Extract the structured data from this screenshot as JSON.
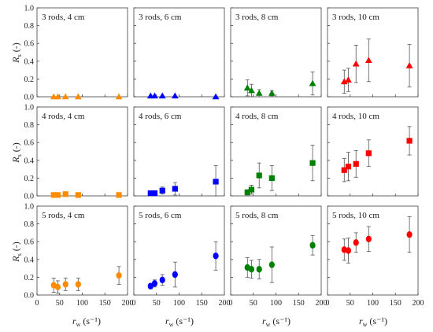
{
  "chart_data": {
    "type": "scatter",
    "grid_layout": {
      "rows": 3,
      "cols": 4
    },
    "xlabel": {
      "symbol": "r",
      "subscript": "w",
      "unit": "(s⁻¹)"
    },
    "ylabel": {
      "symbol": "R",
      "subscript": "s",
      "unit": "(-)"
    },
    "xlim": [
      0,
      200
    ],
    "ylim": [
      0,
      1.0
    ],
    "x_ticks": [
      "0",
      "50",
      "100",
      "150",
      "200"
    ],
    "y_ticks": [
      "0.0",
      "0.2",
      "0.4",
      "0.6",
      "0.8",
      "1.0"
    ],
    "grid": false,
    "row_colors": {
      "4 cm": "#ff8c00",
      "6 cm": "#0000ff",
      "8 cm": "#008000",
      "10 cm": "#ff0000"
    },
    "panels": [
      {
        "label": "3 rods, 4 cm",
        "marker": "triangle",
        "color": "#ff8c00",
        "points": [
          {
            "x": 37,
            "y": 0.0,
            "err": 0.0
          },
          {
            "x": 46,
            "y": 0.0,
            "err": 0.0
          },
          {
            "x": 63,
            "y": 0.0,
            "err": 0.0
          },
          {
            "x": 91,
            "y": 0.0,
            "err": 0.0
          },
          {
            "x": 181,
            "y": 0.0,
            "err": 0.0
          }
        ]
      },
      {
        "label": "3 rods, 6 cm",
        "marker": "triangle",
        "color": "#0000ff",
        "points": [
          {
            "x": 37,
            "y": 0.01,
            "err": 0.0
          },
          {
            "x": 46,
            "y": 0.01,
            "err": 0.0
          },
          {
            "x": 63,
            "y": 0.01,
            "err": 0.0
          },
          {
            "x": 91,
            "y": 0.01,
            "err": 0.0
          },
          {
            "x": 181,
            "y": 0.0,
            "err": 0.0
          }
        ]
      },
      {
        "label": "3 rods, 8 cm",
        "marker": "triangle",
        "color": "#008000",
        "points": [
          {
            "x": 37,
            "y": 0.1,
            "err": 0.09
          },
          {
            "x": 46,
            "y": 0.07,
            "err": 0.07
          },
          {
            "x": 63,
            "y": 0.04,
            "err": 0.04
          },
          {
            "x": 91,
            "y": 0.04,
            "err": 0.03
          },
          {
            "x": 181,
            "y": 0.15,
            "err": 0.13
          }
        ]
      },
      {
        "label": "3 rods, 10 cm",
        "marker": "triangle",
        "color": "#ff0000",
        "points": [
          {
            "x": 37,
            "y": 0.17,
            "err": 0.13
          },
          {
            "x": 46,
            "y": 0.19,
            "err": 0.13
          },
          {
            "x": 63,
            "y": 0.37,
            "err": 0.21
          },
          {
            "x": 91,
            "y": 0.41,
            "err": 0.24
          },
          {
            "x": 181,
            "y": 0.35,
            "err": 0.24
          }
        ]
      },
      {
        "label": "4 rods, 4 cm",
        "marker": "square",
        "color": "#ff8c00",
        "points": [
          {
            "x": 37,
            "y": 0.01,
            "err": 0.0
          },
          {
            "x": 46,
            "y": 0.01,
            "err": 0.0
          },
          {
            "x": 63,
            "y": 0.02,
            "err": 0.0
          },
          {
            "x": 91,
            "y": 0.01,
            "err": 0.0
          },
          {
            "x": 181,
            "y": 0.01,
            "err": 0.0
          }
        ]
      },
      {
        "label": "4 rods, 6 cm",
        "marker": "square",
        "color": "#0000ff",
        "points": [
          {
            "x": 37,
            "y": 0.03,
            "err": 0.02
          },
          {
            "x": 46,
            "y": 0.03,
            "err": 0.02
          },
          {
            "x": 63,
            "y": 0.06,
            "err": 0.04
          },
          {
            "x": 91,
            "y": 0.08,
            "err": 0.07
          },
          {
            "x": 181,
            "y": 0.16,
            "err": 0.18
          }
        ]
      },
      {
        "label": "4 rods, 8 cm",
        "marker": "square",
        "color": "#008000",
        "points": [
          {
            "x": 37,
            "y": 0.04,
            "err": 0.03
          },
          {
            "x": 46,
            "y": 0.07,
            "err": 0.05
          },
          {
            "x": 63,
            "y": 0.23,
            "err": 0.14
          },
          {
            "x": 91,
            "y": 0.2,
            "err": 0.14
          },
          {
            "x": 181,
            "y": 0.37,
            "err": 0.2
          }
        ]
      },
      {
        "label": "4 rods, 10 cm",
        "marker": "square",
        "color": "#ff0000",
        "points": [
          {
            "x": 37,
            "y": 0.29,
            "err": 0.13
          },
          {
            "x": 46,
            "y": 0.33,
            "err": 0.16
          },
          {
            "x": 63,
            "y": 0.36,
            "err": 0.15
          },
          {
            "x": 91,
            "y": 0.48,
            "err": 0.15
          },
          {
            "x": 181,
            "y": 0.62,
            "err": 0.16
          }
        ]
      },
      {
        "label": "5 rods, 4 cm",
        "marker": "circle",
        "color": "#ff8c00",
        "points": [
          {
            "x": 37,
            "y": 0.11,
            "err": 0.08
          },
          {
            "x": 46,
            "y": 0.09,
            "err": 0.07
          },
          {
            "x": 63,
            "y": 0.12,
            "err": 0.07
          },
          {
            "x": 91,
            "y": 0.12,
            "err": 0.07
          },
          {
            "x": 181,
            "y": 0.22,
            "err": 0.1
          }
        ]
      },
      {
        "label": "5 rods, 6 cm",
        "marker": "circle",
        "color": "#0000ff",
        "points": [
          {
            "x": 37,
            "y": 0.1,
            "err": 0.03
          },
          {
            "x": 46,
            "y": 0.13,
            "err": 0.04
          },
          {
            "x": 63,
            "y": 0.17,
            "err": 0.06
          },
          {
            "x": 91,
            "y": 0.23,
            "err": 0.14
          },
          {
            "x": 181,
            "y": 0.44,
            "err": 0.16
          }
        ]
      },
      {
        "label": "5 rods, 8 cm",
        "marker": "circle",
        "color": "#008000",
        "points": [
          {
            "x": 37,
            "y": 0.31,
            "err": 0.11
          },
          {
            "x": 46,
            "y": 0.29,
            "err": 0.1
          },
          {
            "x": 63,
            "y": 0.29,
            "err": 0.11
          },
          {
            "x": 91,
            "y": 0.34,
            "err": 0.2
          },
          {
            "x": 181,
            "y": 0.56,
            "err": 0.11
          }
        ]
      },
      {
        "label": "5 rods, 10 cm",
        "marker": "circle",
        "color": "#ff0000",
        "points": [
          {
            "x": 37,
            "y": 0.51,
            "err": 0.12
          },
          {
            "x": 46,
            "y": 0.5,
            "err": 0.14
          },
          {
            "x": 63,
            "y": 0.59,
            "err": 0.11
          },
          {
            "x": 91,
            "y": 0.63,
            "err": 0.14
          },
          {
            "x": 181,
            "y": 0.68,
            "err": 0.2
          }
        ]
      }
    ]
  }
}
